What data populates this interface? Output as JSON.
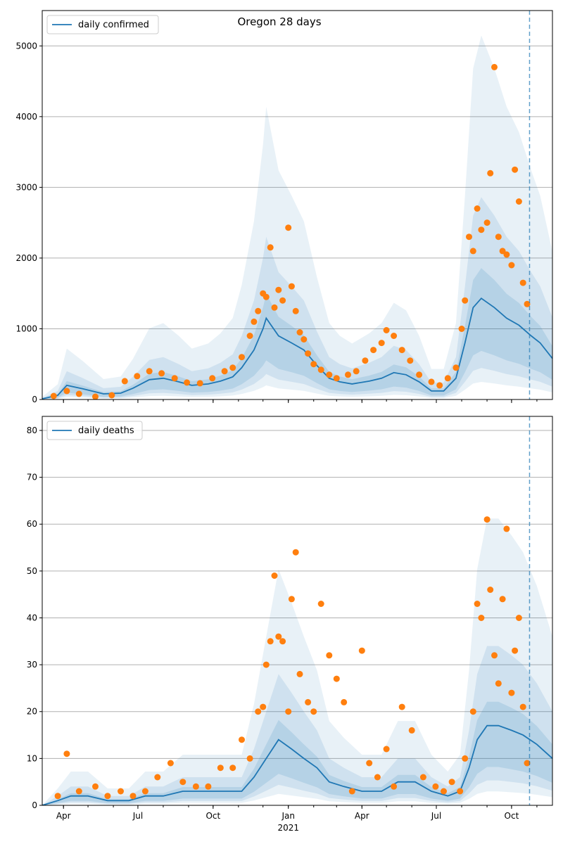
{
  "figure_title": "Oregon 28 days",
  "colors": {
    "model_line": "#1f77b4",
    "observed_points": "#ff7f0e",
    "band_fill": "#1f77b4",
    "grid": "#b0b0b0",
    "forecast_marker": "#1f77b4"
  },
  "chart_data": [
    {
      "type": "line",
      "title": "Oregon 28 days",
      "legend": [
        "daily confirmed"
      ],
      "legend_position": "top-left",
      "grid": "horizontal",
      "ylim": [
        0,
        5500
      ],
      "yticks": [
        0,
        1000,
        2000,
        3000,
        4000,
        5000
      ],
      "x_tick_labels": [
        "Apr",
        "Jul",
        "Oct",
        "Jan",
        "Apr",
        "Jul",
        "Oct"
      ],
      "x_tick_dates": [
        "2020-04-01",
        "2020-07-01",
        "2020-10-01",
        "2021-01-01",
        "2021-04-01",
        "2021-07-01",
        "2021-10-01"
      ],
      "x_year_label": "2021",
      "xlim": [
        "2020-03-06",
        "2021-11-20"
      ],
      "forecast_start": "2021-10-23",
      "series": [
        {
          "name": "daily confirmed",
          "style": "line",
          "x": [
            "2020-03-06",
            "2020-03-25",
            "2020-04-05",
            "2020-04-25",
            "2020-05-20",
            "2020-06-10",
            "2020-06-25",
            "2020-07-15",
            "2020-08-01",
            "2020-08-20",
            "2020-09-05",
            "2020-09-25",
            "2020-10-10",
            "2020-10-25",
            "2020-11-05",
            "2020-11-20",
            "2020-12-01",
            "2020-12-05",
            "2020-12-20",
            "2021-01-05",
            "2021-01-20",
            "2021-02-05",
            "2021-02-20",
            "2021-03-05",
            "2021-03-20",
            "2021-04-10",
            "2021-04-25",
            "2021-05-10",
            "2021-05-25",
            "2021-06-10",
            "2021-06-25",
            "2021-07-10",
            "2021-07-25",
            "2021-08-05",
            "2021-08-15",
            "2021-08-25",
            "2021-09-10",
            "2021-09-25",
            "2021-10-10",
            "2021-10-25",
            "2021-11-05",
            "2021-11-20"
          ],
          "values": [
            10,
            60,
            200,
            150,
            80,
            90,
            160,
            280,
            300,
            250,
            200,
            220,
            260,
            320,
            450,
            700,
            1000,
            1150,
            900,
            800,
            700,
            480,
            300,
            250,
            220,
            260,
            300,
            380,
            350,
            250,
            120,
            120,
            300,
            800,
            1300,
            1430,
            1300,
            1150,
            1050,
            900,
            800,
            580
          ]
        },
        {
          "name": "observed",
          "style": "scatter",
          "x": [
            "2020-03-20",
            "2020-04-05",
            "2020-04-20",
            "2020-05-10",
            "2020-05-30",
            "2020-06-15",
            "2020-06-30",
            "2020-07-15",
            "2020-07-30",
            "2020-08-15",
            "2020-08-30",
            "2020-09-15",
            "2020-09-30",
            "2020-10-15",
            "2020-10-25",
            "2020-11-05",
            "2020-11-15",
            "2020-11-20",
            "2020-11-25",
            "2020-12-01",
            "2020-12-05",
            "2020-12-10",
            "2020-12-15",
            "2020-12-20",
            "2020-12-25",
            "2021-01-01",
            "2021-01-05",
            "2021-01-10",
            "2021-01-15",
            "2021-01-20",
            "2021-01-25",
            "2021-02-01",
            "2021-02-10",
            "2021-02-20",
            "2021-03-01",
            "2021-03-15",
            "2021-03-25",
            "2021-04-05",
            "2021-04-15",
            "2021-04-25",
            "2021-05-01",
            "2021-05-10",
            "2021-05-20",
            "2021-05-30",
            "2021-06-10",
            "2021-06-25",
            "2021-07-05",
            "2021-07-15",
            "2021-07-25",
            "2021-08-01",
            "2021-08-05",
            "2021-08-10",
            "2021-08-15",
            "2021-08-20",
            "2021-08-25",
            "2021-09-01",
            "2021-09-05",
            "2021-09-10",
            "2021-09-15",
            "2021-09-20",
            "2021-09-25",
            "2021-10-01",
            "2021-10-05",
            "2021-10-10",
            "2021-10-15",
            "2021-10-20"
          ],
          "values": [
            50,
            120,
            80,
            40,
            60,
            260,
            330,
            400,
            370,
            300,
            240,
            230,
            300,
            400,
            450,
            600,
            900,
            1100,
            1250,
            1500,
            1450,
            2150,
            1300,
            1550,
            1400,
            2430,
            1600,
            1250,
            950,
            850,
            650,
            500,
            420,
            350,
            300,
            350,
            400,
            550,
            700,
            800,
            980,
            900,
            700,
            550,
            350,
            250,
            200,
            300,
            450,
            1000,
            1400,
            2300,
            2100,
            2700,
            2400,
            2500,
            3200,
            4700,
            2300,
            2100,
            2050,
            1900,
            3250,
            2800,
            1650,
            1350
          ]
        }
      ]
    },
    {
      "type": "line",
      "legend": [
        "daily deaths"
      ],
      "legend_position": "top-left",
      "grid": "horizontal",
      "ylim": [
        0,
        83
      ],
      "yticks": [
        0,
        10,
        20,
        30,
        40,
        50,
        60,
        70,
        80
      ],
      "x_tick_labels": [
        "Apr",
        "Jul",
        "Oct",
        "Jan",
        "Apr",
        "Jul",
        "Oct"
      ],
      "x_tick_dates": [
        "2020-04-01",
        "2020-07-01",
        "2020-10-01",
        "2021-01-01",
        "2021-04-01",
        "2021-07-01",
        "2021-10-01"
      ],
      "x_year_label": "2021",
      "xlim": [
        "2020-03-06",
        "2021-11-20"
      ],
      "forecast_start": "2021-10-23",
      "series": [
        {
          "name": "daily deaths",
          "style": "line",
          "x": [
            "2020-03-06",
            "2020-03-25",
            "2020-04-10",
            "2020-05-01",
            "2020-05-25",
            "2020-06-20",
            "2020-07-10",
            "2020-08-01",
            "2020-08-25",
            "2020-09-20",
            "2020-10-15",
            "2020-11-05",
            "2020-11-20",
            "2020-12-05",
            "2020-12-20",
            "2021-01-05",
            "2021-01-20",
            "2021-02-05",
            "2021-02-20",
            "2021-03-10",
            "2021-04-01",
            "2021-04-25",
            "2021-05-15",
            "2021-06-05",
            "2021-06-25",
            "2021-07-15",
            "2021-07-30",
            "2021-08-10",
            "2021-08-20",
            "2021-09-01",
            "2021-09-15",
            "2021-10-01",
            "2021-10-15",
            "2021-11-01",
            "2021-11-20"
          ],
          "values": [
            0,
            1,
            2,
            2,
            1,
            1,
            2,
            2,
            3,
            3,
            3,
            3,
            6,
            10,
            14,
            12,
            10,
            8,
            5,
            4,
            3,
            3,
            5,
            5,
            3,
            2,
            3,
            8,
            14,
            17,
            17,
            16,
            15,
            13,
            10
          ]
        },
        {
          "name": "observed",
          "style": "scatter",
          "x": [
            "2020-03-25",
            "2020-04-05",
            "2020-04-20",
            "2020-05-10",
            "2020-05-25",
            "2020-06-10",
            "2020-06-25",
            "2020-07-10",
            "2020-07-25",
            "2020-08-10",
            "2020-08-25",
            "2020-09-10",
            "2020-09-25",
            "2020-10-10",
            "2020-10-25",
            "2020-11-05",
            "2020-11-15",
            "2020-11-25",
            "2020-12-01",
            "2020-12-05",
            "2020-12-10",
            "2020-12-15",
            "2020-12-20",
            "2020-12-25",
            "2021-01-01",
            "2021-01-05",
            "2021-01-10",
            "2021-01-15",
            "2021-01-25",
            "2021-02-01",
            "2021-02-10",
            "2021-02-20",
            "2021-03-01",
            "2021-03-10",
            "2021-03-20",
            "2021-04-01",
            "2021-04-10",
            "2021-04-20",
            "2021-05-01",
            "2021-05-10",
            "2021-05-20",
            "2021-06-01",
            "2021-06-15",
            "2021-06-30",
            "2021-07-10",
            "2021-07-20",
            "2021-07-30",
            "2021-08-05",
            "2021-08-15",
            "2021-08-20",
            "2021-08-25",
            "2021-09-01",
            "2021-09-05",
            "2021-09-10",
            "2021-09-15",
            "2021-09-20",
            "2021-09-25",
            "2021-10-01",
            "2021-10-05",
            "2021-10-10",
            "2021-10-15",
            "2021-10-20"
          ],
          "values": [
            2,
            11,
            3,
            4,
            2,
            3,
            2,
            3,
            6,
            9,
            5,
            4,
            4,
            8,
            8,
            14,
            10,
            20,
            21,
            30,
            35,
            49,
            36,
            35,
            20,
            44,
            54,
            28,
            22,
            20,
            43,
            32,
            27,
            22,
            3,
            33,
            9,
            6,
            12,
            4,
            21,
            16,
            6,
            4,
            3,
            5,
            3,
            10,
            20,
            43,
            40,
            61,
            46,
            32,
            26,
            44,
            59,
            24,
            33,
            40,
            21,
            9
          ]
        }
      ]
    }
  ]
}
